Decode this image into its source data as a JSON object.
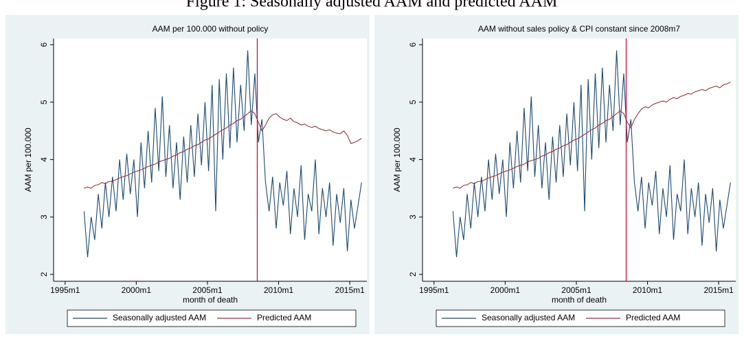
{
  "title": "Figure 1: Seasonally adjusted AAM and predicted AAM",
  "chart_data": [
    {
      "type": "line",
      "title": "AAM per 100.000 without policy",
      "xlabel": "month of death",
      "ylabel": "AAM per 100.000",
      "x": [
        1996.33,
        1996.58,
        1996.83,
        1997.08,
        1997.33,
        1997.58,
        1997.83,
        1998.08,
        1998.33,
        1998.58,
        1998.83,
        1999.08,
        1999.33,
        1999.58,
        1999.83,
        2000.08,
        2000.33,
        2000.58,
        2000.83,
        2001.08,
        2001.33,
        2001.58,
        2001.83,
        2002.08,
        2002.33,
        2002.58,
        2002.83,
        2003.08,
        2003.33,
        2003.58,
        2003.83,
        2004.08,
        2004.33,
        2004.58,
        2004.83,
        2005.08,
        2005.33,
        2005.58,
        2005.83,
        2006.08,
        2006.33,
        2006.58,
        2006.83,
        2007.08,
        2007.33,
        2007.58,
        2007.83,
        2008.08,
        2008.33,
        2008.58,
        2008.83,
        2009.08,
        2009.33,
        2009.58,
        2009.83,
        2010.08,
        2010.33,
        2010.58,
        2010.83,
        2011.08,
        2011.33,
        2011.58,
        2011.83,
        2012.08,
        2012.33,
        2012.58,
        2012.83,
        2013.08,
        2013.33,
        2013.58,
        2013.83,
        2014.08,
        2014.33,
        2014.58,
        2014.83,
        2015.08,
        2015.33,
        2015.58,
        2015.83
      ],
      "series": [
        {
          "name": "Seasonally adjusted AAM",
          "color": "#1a476f",
          "values": [
            3.1,
            2.3,
            3.0,
            2.6,
            3.4,
            2.8,
            3.6,
            3.0,
            3.7,
            3.1,
            4.0,
            3.3,
            4.1,
            3.4,
            4.0,
            3.0,
            4.3,
            3.5,
            4.5,
            3.6,
            4.9,
            3.8,
            5.1,
            3.7,
            4.6,
            3.5,
            4.3,
            3.3,
            4.4,
            3.6,
            4.6,
            3.7,
            4.8,
            3.9,
            5.0,
            3.8,
            5.3,
            3.1,
            5.4,
            4.0,
            5.5,
            4.2,
            5.6,
            4.3,
            5.3,
            4.5,
            5.9,
            4.6,
            5.5,
            4.3,
            4.7,
            3.6,
            3.1,
            3.7,
            2.8,
            3.6,
            3.2,
            3.8,
            2.7,
            3.5,
            3.0,
            3.9,
            2.6,
            3.4,
            3.1,
            4.0,
            2.7,
            3.5,
            3.0,
            3.6,
            2.5,
            3.4,
            2.9,
            3.5,
            2.4,
            3.3,
            2.8,
            3.2,
            3.6
          ]
        },
        {
          "name": "Predicted AAM",
          "color": "#90353b",
          "values": [
            3.5,
            3.52,
            3.5,
            3.55,
            3.56,
            3.6,
            3.58,
            3.62,
            3.62,
            3.65,
            3.68,
            3.7,
            3.72,
            3.75,
            3.78,
            3.8,
            3.82,
            3.85,
            3.88,
            3.9,
            3.92,
            3.96,
            3.98,
            4.0,
            4.02,
            4.06,
            4.08,
            4.12,
            4.14,
            4.18,
            4.2,
            4.24,
            4.26,
            4.3,
            4.34,
            4.36,
            4.4,
            4.44,
            4.48,
            4.52,
            4.55,
            4.6,
            4.63,
            4.68,
            4.7,
            4.75,
            4.8,
            4.85,
            4.8,
            4.65,
            4.5,
            4.6,
            4.72,
            4.78,
            4.8,
            4.74,
            4.7,
            4.68,
            4.72,
            4.66,
            4.64,
            4.6,
            4.62,
            4.58,
            4.56,
            4.58,
            4.54,
            4.52,
            4.5,
            4.52,
            4.48,
            4.46,
            4.45,
            4.5,
            4.42,
            4.28,
            4.3,
            4.33,
            4.37
          ]
        }
      ],
      "vline": 2008.5,
      "vline_color": "#c10534",
      "xlim": [
        1994.19,
        2016.2
      ],
      "xticks": [
        {
          "value": 1995,
          "label": "1995m1"
        },
        {
          "value": 2000,
          "label": "2000m1"
        },
        {
          "value": 2005,
          "label": "2005m1"
        },
        {
          "value": 2010,
          "label": "2010m1"
        },
        {
          "value": 2015,
          "label": "2015m1"
        }
      ],
      "ylim": [
        1.88,
        6.11
      ],
      "yticks": [
        2,
        3,
        4,
        5,
        6
      ]
    },
    {
      "type": "line",
      "title": "AAM without sales policy & CPI constant since 2008m7",
      "xlabel": "month of death",
      "ylabel": "AAM per 100.000",
      "x": [
        1996.33,
        1996.58,
        1996.83,
        1997.08,
        1997.33,
        1997.58,
        1997.83,
        1998.08,
        1998.33,
        1998.58,
        1998.83,
        1999.08,
        1999.33,
        1999.58,
        1999.83,
        2000.08,
        2000.33,
        2000.58,
        2000.83,
        2001.08,
        2001.33,
        2001.58,
        2001.83,
        2002.08,
        2002.33,
        2002.58,
        2002.83,
        2003.08,
        2003.33,
        2003.58,
        2003.83,
        2004.08,
        2004.33,
        2004.58,
        2004.83,
        2005.08,
        2005.33,
        2005.58,
        2005.83,
        2006.08,
        2006.33,
        2006.58,
        2006.83,
        2007.08,
        2007.33,
        2007.58,
        2007.83,
        2008.08,
        2008.33,
        2008.58,
        2008.83,
        2009.08,
        2009.33,
        2009.58,
        2009.83,
        2010.08,
        2010.33,
        2010.58,
        2010.83,
        2011.08,
        2011.33,
        2011.58,
        2011.83,
        2012.08,
        2012.33,
        2012.58,
        2012.83,
        2013.08,
        2013.33,
        2013.58,
        2013.83,
        2014.08,
        2014.33,
        2014.58,
        2014.83,
        2015.08,
        2015.33,
        2015.58,
        2015.83
      ],
      "series": [
        {
          "name": "Seasonally adjusted AAM",
          "color": "#1a476f",
          "values": [
            3.1,
            2.3,
            3.0,
            2.6,
            3.4,
            2.8,
            3.6,
            3.0,
            3.7,
            3.1,
            4.0,
            3.3,
            4.1,
            3.4,
            4.0,
            3.0,
            4.3,
            3.5,
            4.5,
            3.6,
            4.9,
            3.8,
            5.1,
            3.7,
            4.6,
            3.5,
            4.3,
            3.3,
            4.4,
            3.6,
            4.6,
            3.7,
            4.8,
            3.9,
            5.0,
            3.8,
            5.3,
            3.1,
            5.4,
            4.0,
            5.5,
            4.2,
            5.6,
            4.3,
            5.3,
            4.5,
            5.9,
            4.6,
            5.5,
            4.3,
            4.7,
            3.6,
            3.1,
            3.7,
            2.8,
            3.6,
            3.2,
            3.8,
            2.7,
            3.5,
            3.0,
            3.9,
            2.6,
            3.4,
            3.1,
            4.0,
            2.7,
            3.5,
            3.0,
            3.6,
            2.5,
            3.4,
            2.9,
            3.5,
            2.4,
            3.3,
            2.8,
            3.2,
            3.6
          ]
        },
        {
          "name": "Predicted AAM",
          "color": "#90353b",
          "values": [
            3.5,
            3.52,
            3.5,
            3.55,
            3.56,
            3.6,
            3.58,
            3.62,
            3.62,
            3.65,
            3.68,
            3.7,
            3.72,
            3.75,
            3.78,
            3.8,
            3.82,
            3.85,
            3.88,
            3.9,
            3.92,
            3.96,
            3.98,
            4.0,
            4.02,
            4.06,
            4.08,
            4.12,
            4.14,
            4.18,
            4.2,
            4.24,
            4.26,
            4.3,
            4.34,
            4.36,
            4.4,
            4.44,
            4.48,
            4.52,
            4.55,
            4.6,
            4.63,
            4.68,
            4.7,
            4.75,
            4.8,
            4.85,
            4.8,
            4.65,
            4.55,
            4.7,
            4.8,
            4.88,
            4.92,
            4.9,
            4.95,
            4.98,
            5.0,
            5.02,
            5.0,
            5.05,
            5.08,
            5.06,
            5.1,
            5.12,
            5.15,
            5.14,
            5.18,
            5.2,
            5.22,
            5.2,
            5.24,
            5.26,
            5.28,
            5.25,
            5.3,
            5.32,
            5.35
          ]
        }
      ],
      "vline": 2008.5,
      "vline_color": "#c10534",
      "xlim": [
        1994.19,
        2016.2
      ],
      "xticks": [
        {
          "value": 1995,
          "label": "1995m1"
        },
        {
          "value": 2000,
          "label": "2000m1"
        },
        {
          "value": 2005,
          "label": "2005m1"
        },
        {
          "value": 2010,
          "label": "2010m1"
        },
        {
          "value": 2015,
          "label": "2015m1"
        }
      ],
      "ylim": [
        1.88,
        6.11
      ],
      "yticks": [
        2,
        3,
        4,
        5,
        6
      ]
    }
  ]
}
